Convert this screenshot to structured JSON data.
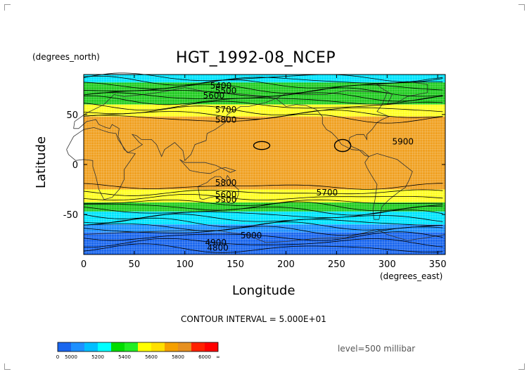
{
  "chart_data": {
    "type": "heatmap",
    "title": "HGT_1992-08_NCEP",
    "xlabel": "Longitude",
    "ylabel": "Latitude",
    "x_units": "(degrees_east)",
    "y_units": "(degrees_north)",
    "xlim": [
      0,
      357.5
    ],
    "ylim": [
      -90,
      90
    ],
    "x_ticks": [
      0,
      50,
      100,
      150,
      200,
      250,
      300,
      350
    ],
    "y_ticks": [
      -50,
      0,
      50
    ],
    "contour_interval_text": "CONTOUR INTERVAL = 5.000E+01",
    "level_text": "level=500 millibar",
    "colorbar": {
      "ticks": [
        "0",
        "5000",
        "5200",
        "5400",
        "5600",
        "5800",
        "6000",
        "∞"
      ],
      "colors": [
        "#1a66ee",
        "#1e90ff",
        "#00bfff",
        "#00ffff",
        "#00dd00",
        "#22ee22",
        "#ffff00",
        "#ffe000",
        "#f5a000",
        "#e69020",
        "#ff2200",
        "#ff0000"
      ]
    },
    "bands": [
      {
        "lat_north": 90,
        "lat_south": 82,
        "color": "#00e5ff"
      },
      {
        "lat_north": 82,
        "lat_south": 60,
        "color": "#22cc22"
      },
      {
        "lat_north": 60,
        "lat_south": 48,
        "color": "#ffff22"
      },
      {
        "lat_north": 48,
        "lat_south": -25,
        "color": "#f0a020"
      },
      {
        "lat_north": -25,
        "lat_south": -38,
        "color": "#ffff22"
      },
      {
        "lat_north": -38,
        "lat_south": -47,
        "color": "#22cc22"
      },
      {
        "lat_north": -47,
        "lat_south": -60,
        "color": "#00e5ff"
      },
      {
        "lat_north": -60,
        "lat_south": -68,
        "color": "#1e90ff"
      },
      {
        "lat_north": -68,
        "lat_south": -90,
        "color": "#1a66ee"
      }
    ],
    "contour_labels": [
      {
        "text": "5400",
        "lon": 125,
        "lat": 76
      },
      {
        "text": "5500",
        "lon": 130,
        "lat": 71
      },
      {
        "text": "5600",
        "lon": 118,
        "lat": 66
      },
      {
        "text": "5700",
        "lon": 130,
        "lat": 52
      },
      {
        "text": "5800",
        "lon": 130,
        "lat": 42
      },
      {
        "text": "5900",
        "lon": 305,
        "lat": 20
      },
      {
        "text": "5800",
        "lon": 130,
        "lat": -21
      },
      {
        "text": "5600",
        "lon": 130,
        "lat": -33
      },
      {
        "text": "5500",
        "lon": 130,
        "lat": -38
      },
      {
        "text": "5700",
        "lon": 230,
        "lat": -31
      },
      {
        "text": "5000",
        "lon": 155,
        "lat": -74
      },
      {
        "text": "4900",
        "lon": 120,
        "lat": -81
      },
      {
        "text": "4800",
        "lon": 122,
        "lat": -86
      }
    ]
  }
}
